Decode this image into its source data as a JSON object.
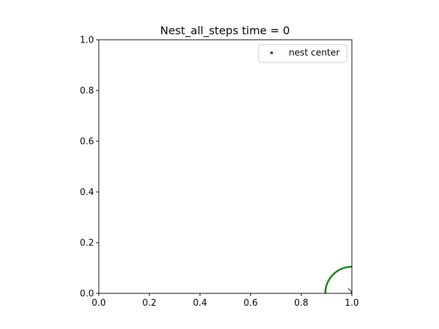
{
  "chart_data": {
    "type": "scatter",
    "title": "Nest_all_steps time = 0",
    "xlabel": "",
    "ylabel": "",
    "xlim": [
      0.0,
      1.0
    ],
    "ylim": [
      0.0,
      1.0
    ],
    "x_ticks": [
      "0.0",
      "0.2",
      "0.4",
      "0.6",
      "0.8",
      "1.0"
    ],
    "y_ticks": [
      "0.0",
      "0.2",
      "0.4",
      "0.6",
      "0.8",
      "1.0"
    ],
    "grid": false,
    "legend_position": "top-right",
    "series": [
      {
        "name": "nest center",
        "color": "#006400",
        "x": [
          1.0
        ],
        "y": [
          0.0
        ]
      }
    ],
    "shapes": [
      {
        "kind": "circle",
        "center": [
          1.0,
          0.0
        ],
        "radius": 0.105,
        "color": "#008000"
      },
      {
        "kind": "segment",
        "from": [
          0.985,
          0.02
        ],
        "to": [
          1.0,
          0.005
        ],
        "color": "#8b3a62"
      }
    ]
  }
}
